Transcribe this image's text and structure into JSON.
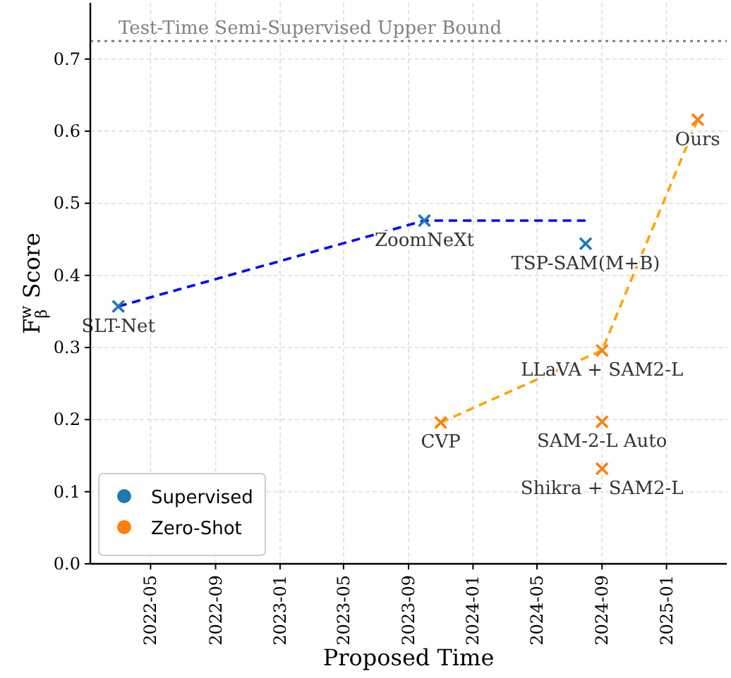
{
  "chart_data": {
    "type": "scatter",
    "xlabel": "Proposed Time",
    "ylabel": "F$_{β}$$^{w}$ Score",
    "xlim": [
      "2022-01-07",
      "2025-04-25"
    ],
    "ylim": [
      0,
      0.778
    ],
    "xticks": [
      "2022-05",
      "2022-09",
      "2023-01",
      "2023-05",
      "2023-09",
      "2024-01",
      "2024-05",
      "2024-09",
      "2025-01"
    ],
    "yticks": [
      {
        "value": 0,
        "label": "0.0"
      },
      0.1,
      0.2,
      0.3,
      0.4,
      0.5,
      0.6,
      0.7
    ],
    "grid": true,
    "legend": "bottom left",
    "series": [
      {
        "type": "line",
        "color": "#0000ff",
        "line_style": "dashed",
        "marker": "none",
        "x": [
          "2022-03",
          "2023-10",
          "2024-08"
        ],
        "values": [
          0.357,
          0.476,
          0.476
        ]
      },
      {
        "type": "line",
        "color": "#ffa500",
        "line_style": "dashed",
        "marker": "none",
        "x": [
          "2023-11",
          "2024-09",
          "2025-03"
        ],
        "values": [
          0.196,
          0.296,
          0.616
        ]
      },
      {
        "name": "Supervised",
        "color": "#1f77b4",
        "marker": "cross",
        "x": [
          "2022-03",
          "2023-10",
          "2024-08"
        ],
        "values": [
          0.357,
          0.476,
          0.444
        ]
      },
      {
        "name": "Zero-Shot",
        "color": "#ff7f0e",
        "marker": "cross",
        "x": [
          "2023-11",
          "2024-09",
          "2024-09",
          "2024-09",
          "2025-03"
        ],
        "values": [
          0.196,
          0.296,
          0.197,
          0.132,
          0.616
        ]
      }
    ],
    "ref_lines": [
      {
        "axis": "y",
        "value": 0.725,
        "label": "Test-Time Semi-Supervised Upper Bound",
        "color": "#808080",
        "line_style": "dotted"
      }
    ],
    "annotations": [
      {
        "text": "SLT-Net",
        "x": "2022-03",
        "y": 0.357
      },
      {
        "text": "ZoomNeXt",
        "x": "2023-10",
        "y": 0.476
      },
      {
        "text": "TSP-SAM(M+B)",
        "x": "2024-08",
        "y": 0.444
      },
      {
        "text": "CVP",
        "x": "2023-11",
        "y": 0.196
      },
      {
        "text": "LLaVA + SAM2-L",
        "x": "2024-09",
        "y": 0.296
      },
      {
        "text": "SAM-2-L Auto",
        "x": "2024-09",
        "y": 0.197
      },
      {
        "text": "Shikra + SAM2-L",
        "x": "2024-09",
        "y": 0.132
      },
      {
        "text": "Ours",
        "x": "2025-03",
        "y": 0.616
      }
    ]
  }
}
